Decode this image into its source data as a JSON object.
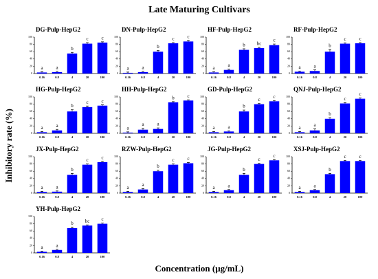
{
  "title": "Late Maturing Cultivars",
  "xlabel": "Concentration (μg/mL)",
  "ylabel": "Inhibitory rate (%)",
  "chart_data": [
    {
      "type": "bar",
      "title": "DG-Pulp-HepG2",
      "categories": [
        "0.16",
        "0.8",
        "4",
        "20",
        "100"
      ],
      "values": [
        3,
        4,
        55,
        82,
        85
      ],
      "errors": [
        2,
        2,
        3,
        3,
        2
      ],
      "annotations": [
        "a",
        "a",
        "b",
        "c",
        "c"
      ],
      "color": "#0000ff",
      "ylim": [
        0,
        100
      ],
      "yticks": [
        0,
        20,
        40,
        60,
        80,
        100
      ]
    },
    {
      "type": "bar",
      "title": "DN-Pulp-HepG2",
      "categories": [
        "0.16",
        "0.8",
        "4",
        "20",
        "100"
      ],
      "values": [
        2,
        4,
        60,
        83,
        88
      ],
      "errors": [
        2,
        2,
        3,
        2,
        3
      ],
      "annotations": [
        "a",
        "a",
        "b",
        "c",
        "c"
      ],
      "color": "#0000ff",
      "ylim": [
        0,
        100
      ],
      "yticks": [
        0,
        20,
        40,
        60,
        80,
        100
      ]
    },
    {
      "type": "bar",
      "title": "HF-Pulp-HepG2",
      "categories": [
        "0.16",
        "0.8",
        "4",
        "20",
        "100"
      ],
      "values": [
        3,
        10,
        65,
        70,
        78
      ],
      "errors": [
        2,
        2,
        3,
        2,
        3
      ],
      "annotations": [
        "a",
        "a",
        "b",
        "bc",
        "c"
      ],
      "color": "#0000ff",
      "ylim": [
        0,
        100
      ],
      "yticks": [
        0,
        20,
        40,
        60,
        80,
        100
      ]
    },
    {
      "type": "bar",
      "title": "RF-Pulp-HepG2",
      "categories": [
        "0.16",
        "0.8",
        "4",
        "20",
        "100"
      ],
      "values": [
        5,
        7,
        60,
        82,
        83
      ],
      "errors": [
        2,
        3,
        6,
        2,
        2
      ],
      "annotations": [
        "a",
        "a",
        "b",
        "c",
        "c"
      ],
      "color": "#0000ff",
      "ylim": [
        0,
        100
      ],
      "yticks": [
        0,
        20,
        40,
        60,
        80,
        100
      ]
    },
    {
      "type": "bar",
      "title": "HG-Pulp-HepG2",
      "categories": [
        "0.16",
        "0.8",
        "4",
        "20",
        "100"
      ],
      "values": [
        3,
        8,
        60,
        72,
        76
      ],
      "errors": [
        2,
        3,
        5,
        3,
        2
      ],
      "annotations": [
        "a",
        "a",
        "b",
        "c",
        "c"
      ],
      "color": "#0000ff",
      "ylim": [
        0,
        100
      ],
      "yticks": [
        0,
        20,
        40,
        60,
        80,
        100
      ]
    },
    {
      "type": "bar",
      "title": "HH-Pulp-HepG2",
      "categories": [
        "0.16",
        "0.8",
        "4",
        "20",
        "100"
      ],
      "values": [
        2,
        10,
        12,
        85,
        90
      ],
      "errors": [
        2,
        4,
        3,
        2,
        2
      ],
      "annotations": [
        "a",
        "a",
        "a",
        "b",
        "c"
      ],
      "color": "#0000ff",
      "ylim": [
        0,
        100
      ],
      "yticks": [
        0,
        20,
        40,
        60,
        80,
        100
      ]
    },
    {
      "type": "bar",
      "title": "GD-Pulp-HepG2",
      "categories": [
        "0.16",
        "0.8",
        "4",
        "20",
        "100"
      ],
      "values": [
        3,
        5,
        60,
        80,
        88
      ],
      "errors": [
        2,
        2,
        4,
        2,
        2
      ],
      "annotations": [
        "a",
        "a",
        "b",
        "c",
        "c"
      ],
      "color": "#0000ff",
      "ylim": [
        0,
        100
      ],
      "yticks": [
        0,
        20,
        40,
        60,
        80,
        100
      ]
    },
    {
      "type": "bar",
      "title": "QNJ-Pulp-HepG2",
      "categories": [
        "0.16",
        "0.8",
        "4",
        "20",
        "100"
      ],
      "values": [
        3,
        8,
        40,
        82,
        95
      ],
      "errors": [
        2,
        4,
        3,
        2,
        2
      ],
      "annotations": [
        "a",
        "a",
        "b",
        "c",
        "c"
      ],
      "color": "#0000ff",
      "ylim": [
        0,
        100
      ],
      "yticks": [
        0,
        20,
        40,
        60,
        80,
        100
      ]
    },
    {
      "type": "bar",
      "title": "JX-Pulp-HepG2",
      "categories": [
        "0.16",
        "0.8",
        "4",
        "20",
        "100"
      ],
      "values": [
        3,
        4,
        50,
        78,
        85
      ],
      "errors": [
        2,
        2,
        4,
        2,
        2
      ],
      "annotations": [
        "a",
        "a",
        "b",
        "c",
        "c"
      ],
      "color": "#0000ff",
      "ylim": [
        0,
        100
      ],
      "yticks": [
        0,
        20,
        40,
        60,
        80,
        100
      ]
    },
    {
      "type": "bar",
      "title": "RZW-Pulp-HepG2",
      "categories": [
        "0.16",
        "0.8",
        "4",
        "20",
        "100"
      ],
      "values": [
        3,
        10,
        60,
        78,
        82
      ],
      "errors": [
        2,
        2,
        3,
        2,
        2
      ],
      "annotations": [
        "a",
        "a",
        "b",
        "c",
        "c"
      ],
      "color": "#0000ff",
      "ylim": [
        0,
        100
      ],
      "yticks": [
        0,
        20,
        40,
        60,
        80,
        100
      ]
    },
    {
      "type": "bar",
      "title": "JG-Pulp-HepG2",
      "categories": [
        "0.16",
        "0.8",
        "4",
        "20",
        "100"
      ],
      "values": [
        3,
        8,
        50,
        80,
        90
      ],
      "errors": [
        2,
        2,
        4,
        2,
        2
      ],
      "annotations": [
        "a",
        "a",
        "b",
        "c",
        "c"
      ],
      "color": "#0000ff",
      "ylim": [
        0,
        100
      ],
      "yticks": [
        0,
        20,
        40,
        60,
        80,
        100
      ]
    },
    {
      "type": "bar",
      "title": "XSJ-Pulp-HepG2",
      "categories": [
        "0.16",
        "0.8",
        "4",
        "20",
        "100"
      ],
      "values": [
        3,
        8,
        52,
        88,
        88
      ],
      "errors": [
        2,
        2,
        2,
        2,
        2
      ],
      "annotations": [
        "a",
        "a",
        "b",
        "c",
        "c"
      ],
      "color": "#0000ff",
      "ylim": [
        0,
        100
      ],
      "yticks": [
        0,
        20,
        40,
        60,
        80,
        100
      ]
    },
    {
      "type": "bar",
      "title": "YH-Pulp-HepG2",
      "categories": [
        "0.16",
        "0.8",
        "4",
        "20",
        "100"
      ],
      "values": [
        3,
        8,
        68,
        75,
        80
      ],
      "errors": [
        2,
        2,
        3,
        2,
        2
      ],
      "annotations": [
        "a",
        "a",
        "b",
        "bc",
        "c"
      ],
      "color": "#0000ff",
      "ylim": [
        0,
        100
      ],
      "yticks": [
        0,
        20,
        40,
        60,
        80,
        100
      ]
    }
  ]
}
